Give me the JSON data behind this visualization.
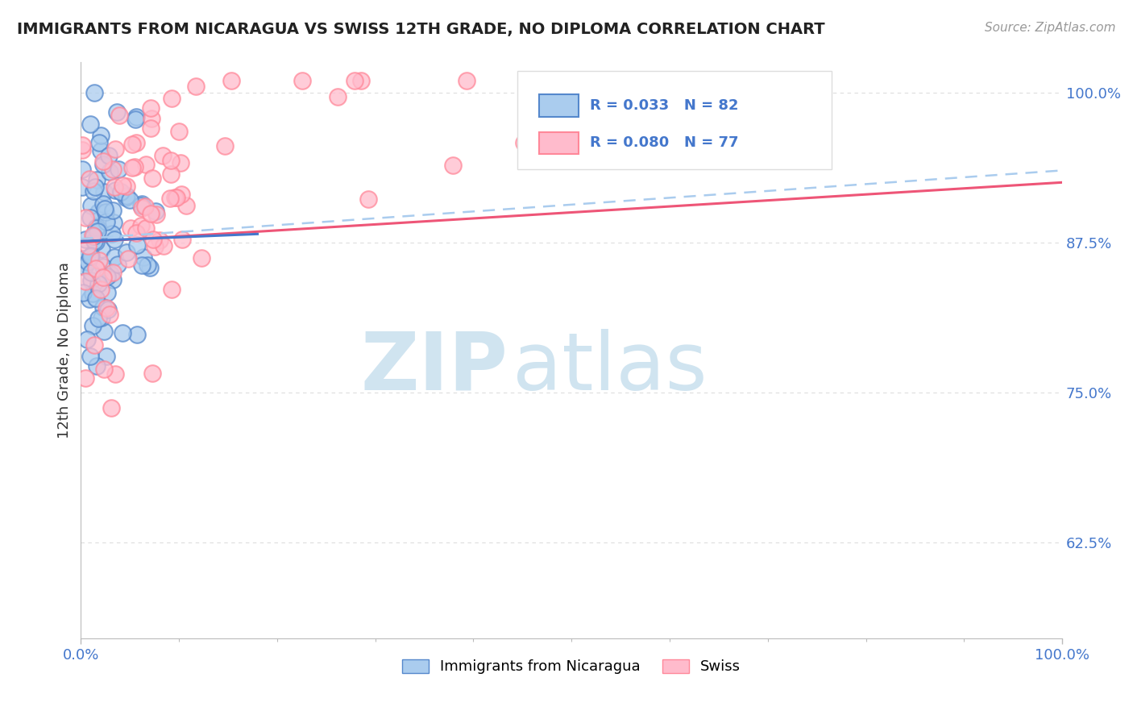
{
  "title": "IMMIGRANTS FROM NICARAGUA VS SWISS 12TH GRADE, NO DIPLOMA CORRELATION CHART",
  "source_text": "Source: ZipAtlas.com",
  "ylabel": "12th Grade, No Diploma",
  "legend_label_blue": "Immigrants from Nicaragua",
  "legend_label_pink": "Swiss",
  "R_blue": 0.033,
  "N_blue": 82,
  "R_pink": 0.08,
  "N_pink": 77,
  "xlim": [
    0.0,
    1.0
  ],
  "ylim": [
    0.545,
    1.025
  ],
  "yticks": [
    0.625,
    0.75,
    0.875,
    1.0
  ],
  "ytick_labels": [
    "62.5%",
    "75.0%",
    "87.5%",
    "100.0%"
  ],
  "xtick_labels": [
    "0.0%",
    "100.0%"
  ],
  "xticks": [
    0.0,
    1.0
  ],
  "xticks_minor": [
    0.1,
    0.2,
    0.3,
    0.4,
    0.5,
    0.6,
    0.7,
    0.8,
    0.9
  ],
  "color_blue_face": "#AACCEE",
  "color_blue_edge": "#5588CC",
  "color_pink_face": "#FFBBCC",
  "color_pink_edge": "#FF8899",
  "color_blue_line": "#4477CC",
  "color_pink_line": "#EE5577",
  "color_dashed_line": "#AACCEE",
  "watermark_zip": "ZIP",
  "watermark_atlas": "atlas",
  "watermark_color": "#D0E4F0",
  "background_color": "#FFFFFF",
  "grid_color": "#DDDDDD",
  "title_color": "#222222",
  "blue_line_x0": 0.0,
  "blue_line_y0": 0.876,
  "blue_line_x1": 0.18,
  "blue_line_y1": 0.882,
  "pink_line_x0": 0.0,
  "pink_line_y0": 0.875,
  "pink_line_x1": 1.0,
  "pink_line_y1": 0.925,
  "dash_line_x0": 0.0,
  "dash_line_y0": 0.878,
  "dash_line_x1": 1.0,
  "dash_line_y1": 0.935
}
